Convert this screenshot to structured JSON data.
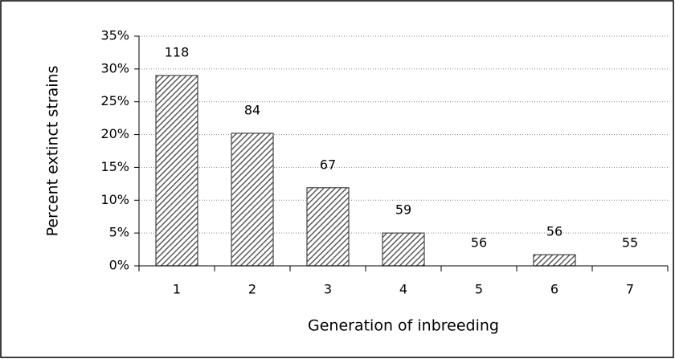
{
  "chart_data": {
    "type": "bar",
    "categories": [
      "1",
      "2",
      "3",
      "4",
      "5",
      "6",
      "7"
    ],
    "values": [
      29,
      20.2,
      11.9,
      5,
      0,
      1.7,
      0
    ],
    "annotations": [
      118,
      84,
      67,
      59,
      56,
      56,
      55
    ],
    "xlabel": "Generation of inbreeding",
    "ylabel": "Percent extinct strains",
    "ylim": [
      0,
      35
    ],
    "yticks": [
      {
        "value": 0,
        "label": "0%"
      },
      {
        "value": 5,
        "label": "5%"
      },
      {
        "value": 10,
        "label": "10%"
      },
      {
        "value": 15,
        "label": "15%"
      },
      {
        "value": 20,
        "label": "20%"
      },
      {
        "value": 25,
        "label": "25%"
      },
      {
        "value": 30,
        "label": "30%"
      },
      {
        "value": 35,
        "label": "35%"
      }
    ],
    "grid": true,
    "color": "#444444"
  }
}
